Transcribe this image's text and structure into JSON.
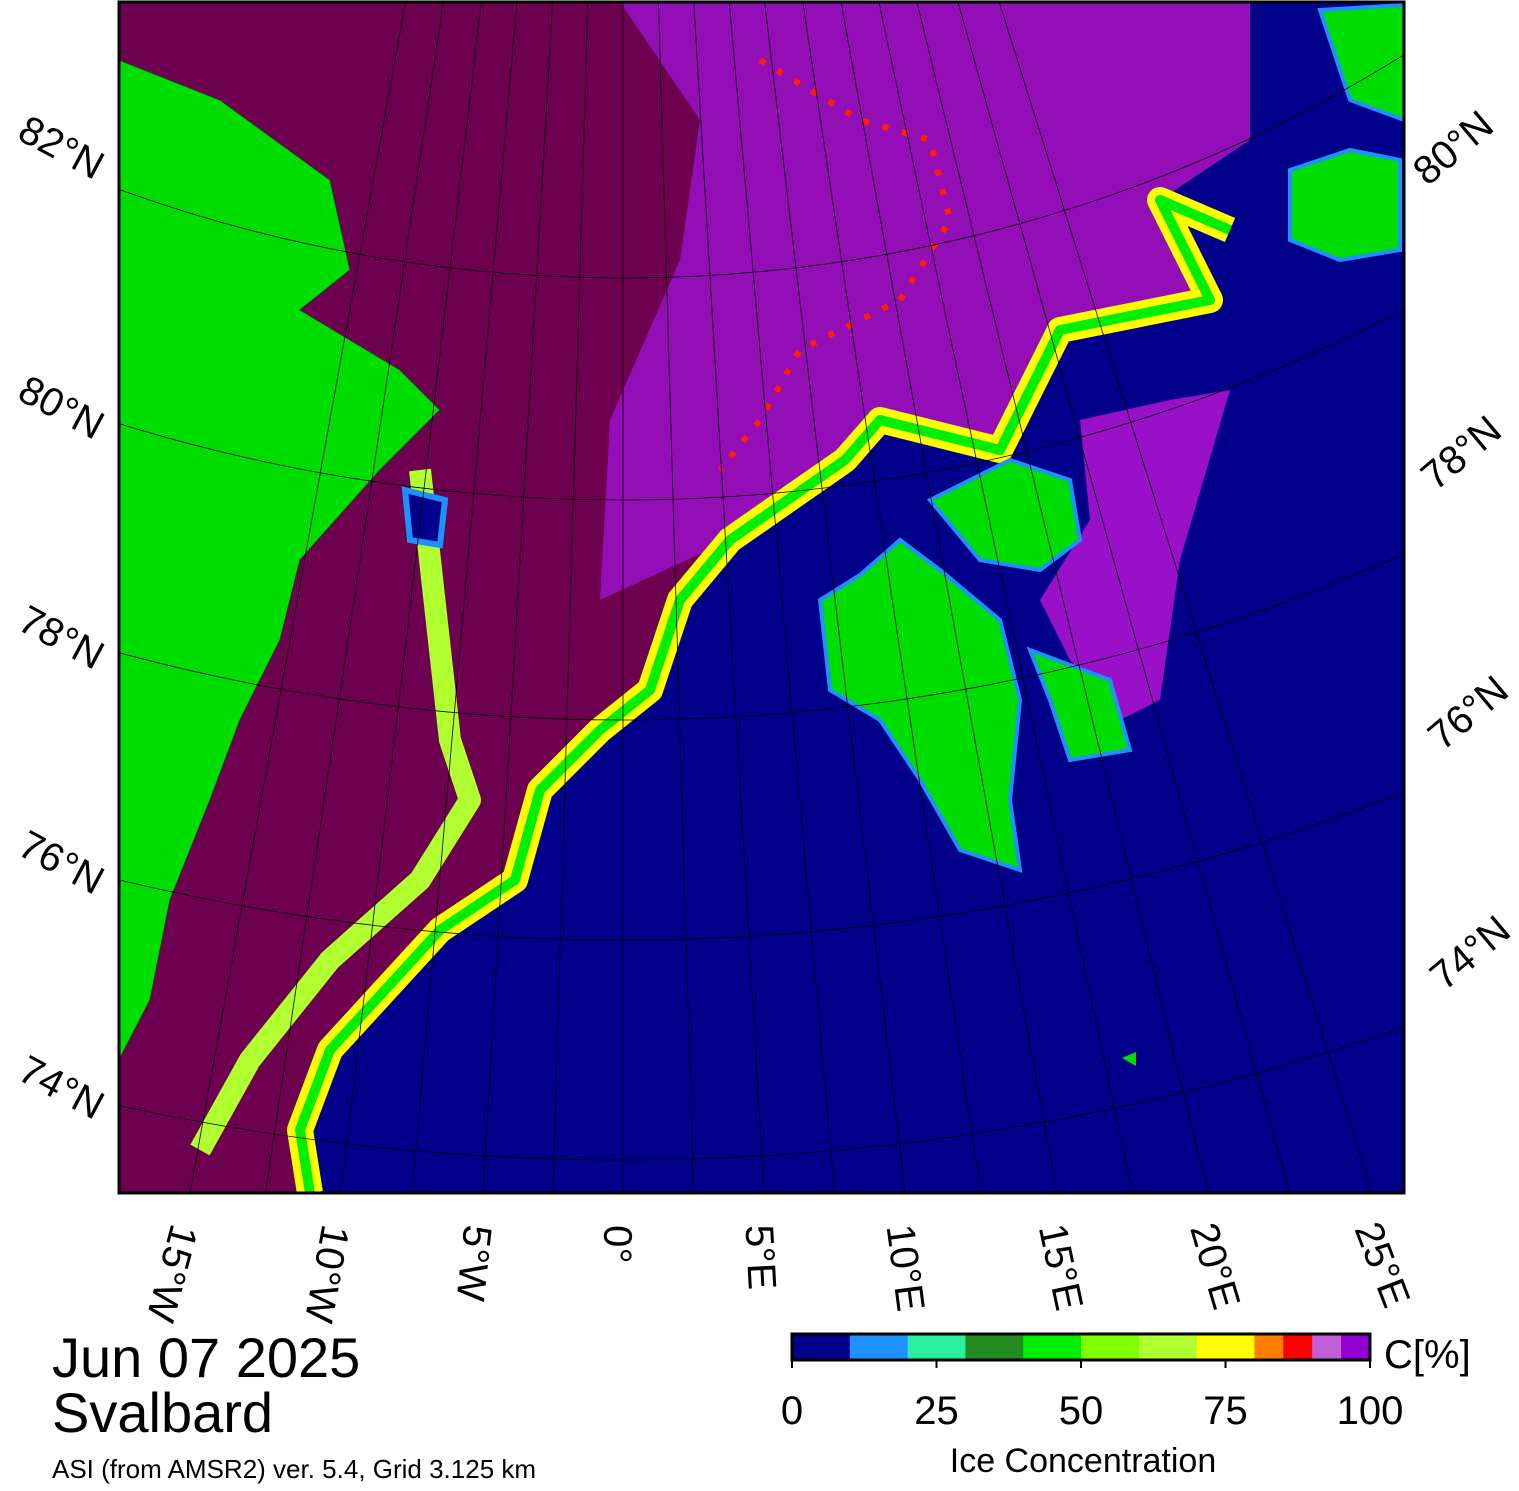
{
  "map": {
    "lat_labels_left": [
      "82°N",
      "80°N",
      "78°N",
      "76°N",
      "74°N"
    ],
    "lat_labels_right": [
      "80°N",
      "78°N",
      "76°N",
      "74°N"
    ],
    "lon_labels": [
      "15°W",
      "10°W",
      "5°W",
      "0°",
      "5°E",
      "10°E",
      "15°E",
      "20°E",
      "25°E"
    ]
  },
  "date": "Jun 07 2025",
  "region": "Svalbard",
  "source": "ASI (from AMSR2) ver. 5.4,  Grid 3.125 km",
  "colorbar": {
    "unit": "C[%]",
    "title": "Ice Concentration",
    "range": [
      0,
      100
    ],
    "ticks": [
      0,
      25,
      50,
      75,
      100
    ],
    "colors": [
      "#00008b",
      "#00008b",
      "#1e90ff",
      "#1e90ff",
      "#28f0a0",
      "#28f0a0",
      "#228b22",
      "#228b22",
      "#00ee00",
      "#00ee00",
      "#80ff00",
      "#80ff00",
      "#b0ff30",
      "#b0ff30",
      "#ffff00",
      "#ffff00",
      "#ff8000",
      "#ff0000",
      "#c060d8",
      "#9000d0"
    ]
  }
}
